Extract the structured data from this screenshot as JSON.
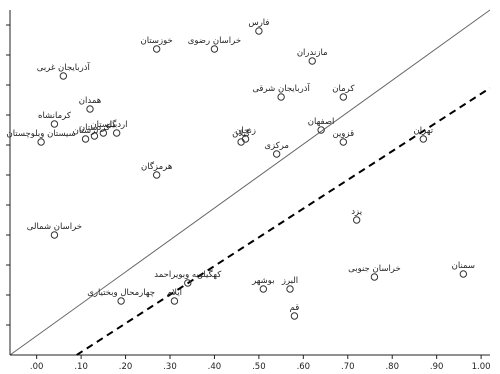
{
  "chart_data": {
    "type": "scatter",
    "title": "",
    "xlabel": "",
    "ylabel": "",
    "xlim": [
      -0.06,
      1.02
    ],
    "ylim": [
      0.0,
      1.15
    ],
    "xticks": [
      {
        "value": 0.0,
        "label": ".00"
      },
      {
        "value": 0.1,
        "label": ".10"
      },
      {
        "value": 0.2,
        "label": ".20"
      },
      {
        "value": 0.3,
        "label": ".30"
      },
      {
        "value": 0.4,
        "label": ".40"
      },
      {
        "value": 0.5,
        "label": ".50"
      },
      {
        "value": 0.6,
        "label": ".60"
      },
      {
        "value": 0.7,
        "label": ".70"
      },
      {
        "value": 0.8,
        "label": ".80"
      },
      {
        "value": 0.9,
        "label": ".90"
      },
      {
        "value": 1.0,
        "label": "1.00"
      }
    ],
    "grid": false,
    "points": [
      {
        "label": "فارس",
        "x": 0.5,
        "y": 1.08
      },
      {
        "label": "خوزستان",
        "x": 0.27,
        "y": 1.02
      },
      {
        "label": "خراسان رضوی",
        "x": 0.4,
        "y": 1.02
      },
      {
        "label": "مازندران",
        "x": 0.62,
        "y": 0.98
      },
      {
        "label": "آذربایجان غربی",
        "x": 0.06,
        "y": 0.93
      },
      {
        "label": "آذربایجان شرقی",
        "x": 0.55,
        "y": 0.86
      },
      {
        "label": "کرمان",
        "x": 0.69,
        "y": 0.86
      },
      {
        "label": "همدان",
        "x": 0.12,
        "y": 0.82
      },
      {
        "label": "کرمانشاه",
        "x": 0.04,
        "y": 0.77
      },
      {
        "label": "گلستان",
        "x": 0.15,
        "y": 0.74
      },
      {
        "label": "اصفهان",
        "x": 0.64,
        "y": 0.75
      },
      {
        "label": "تهران",
        "x": 0.87,
        "y": 0.72
      },
      {
        "label": "اردبیل",
        "x": 0.18,
        "y": 0.74
      },
      {
        "label": "سیستان وبلوچستان",
        "x": 0.01,
        "y": 0.71
      },
      {
        "label": "کردستان",
        "x": 0.13,
        "y": 0.73
      },
      {
        "label": "لرستان",
        "x": 0.11,
        "y": 0.72
      },
      {
        "label": "زنجان",
        "x": 0.47,
        "y": 0.72
      },
      {
        "label": "قزوین",
        "x": 0.69,
        "y": 0.71
      },
      {
        "label": "گیلان",
        "x": 0.46,
        "y": 0.71
      },
      {
        "label": "مرکزی",
        "x": 0.54,
        "y": 0.67
      },
      {
        "label": "هرمزگان",
        "x": 0.27,
        "y": 0.6
      },
      {
        "label": "یزد",
        "x": 0.72,
        "y": 0.45
      },
      {
        "label": "خراسان شمالی",
        "x": 0.04,
        "y": 0.4
      },
      {
        "label": "سمنان",
        "x": 0.96,
        "y": 0.27
      },
      {
        "label": "خراسان جنوبی",
        "x": 0.76,
        "y": 0.26
      },
      {
        "label": "کهگیلویه وبویراحمد",
        "x": 0.34,
        "y": 0.24
      },
      {
        "label": "البرز",
        "x": 0.57,
        "y": 0.22
      },
      {
        "label": "بوشهر",
        "x": 0.51,
        "y": 0.22
      },
      {
        "label": "چهارمحال وبختیاری",
        "x": 0.19,
        "y": 0.18
      },
      {
        "label": "ایلام",
        "x": 0.31,
        "y": 0.18
      },
      {
        "label": "قم",
        "x": 0.58,
        "y": 0.13
      }
    ],
    "lines": [
      {
        "kind": "reference",
        "style": "solid",
        "from": {
          "x": -0.06,
          "y": 0.0
        },
        "to": {
          "x": 1.02,
          "y": 1.15
        }
      },
      {
        "kind": "fit",
        "style": "dashed",
        "from": {
          "x": 0.09,
          "y": 0.0
        },
        "to": {
          "x": 1.02,
          "y": 0.89
        }
      }
    ]
  }
}
